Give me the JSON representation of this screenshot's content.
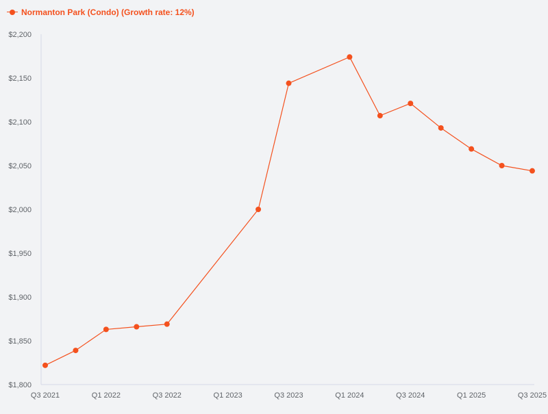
{
  "colors": {
    "series": "#f4511e",
    "axis": "#d6d9e8",
    "tick_text": "#5f6368",
    "background": "#f2f3f5"
  },
  "legend": {
    "label": "Normanton Park (Condo) (Growth rate: 12%)",
    "position": "top-left"
  },
  "chart_data": {
    "type": "line",
    "title": "",
    "xlabel": "",
    "ylabel": "",
    "grid": false,
    "legend_position": "top-left",
    "x": [
      "Q3 2021",
      "Q4 2021",
      "Q1 2022",
      "Q2 2022",
      "Q3 2022",
      "Q4 2022",
      "Q1 2023",
      "Q2 2023",
      "Q3 2023",
      "Q4 2023",
      "Q1 2024",
      "Q2 2024",
      "Q3 2024",
      "Q4 2024",
      "Q1 2025",
      "Q2 2025",
      "Q3 2025"
    ],
    "x_tick_labels": [
      "Q3 2021",
      "Q1 2022",
      "Q3 2022",
      "Q1 2023",
      "Q3 2023",
      "Q1 2024",
      "Q3 2024",
      "Q1 2025",
      "Q3 2025"
    ],
    "series": [
      {
        "name": "Normanton Park (Condo) (Growth rate: 12%)",
        "points": [
          {
            "x": "Q3 2021",
            "y": 1822
          },
          {
            "x": "Q4 2021",
            "y": 1839
          },
          {
            "x": "Q1 2022",
            "y": 1863
          },
          {
            "x": "Q2 2022",
            "y": 1866
          },
          {
            "x": "Q3 2022",
            "y": 1869
          },
          {
            "x": "Q2 2023",
            "y": 2000
          },
          {
            "x": "Q3 2023",
            "y": 2144
          },
          {
            "x": "Q1 2024",
            "y": 2174
          },
          {
            "x": "Q2 2024",
            "y": 2107
          },
          {
            "x": "Q3 2024",
            "y": 2121
          },
          {
            "x": "Q4 2024",
            "y": 2093
          },
          {
            "x": "Q1 2025",
            "y": 2069
          },
          {
            "x": "Q2 2025",
            "y": 2050
          },
          {
            "x": "Q3 2025",
            "y": 2044
          }
        ]
      }
    ],
    "ylim": [
      1800,
      2200
    ],
    "y_ticks": [
      1800,
      1850,
      1900,
      1950,
      2000,
      2050,
      2100,
      2150,
      2200
    ],
    "y_tick_labels": [
      "$1,800",
      "$1,850",
      "$1,900",
      "$1,950",
      "$2,000",
      "$2,050",
      "$2,100",
      "$2,150",
      "$2,200"
    ]
  }
}
